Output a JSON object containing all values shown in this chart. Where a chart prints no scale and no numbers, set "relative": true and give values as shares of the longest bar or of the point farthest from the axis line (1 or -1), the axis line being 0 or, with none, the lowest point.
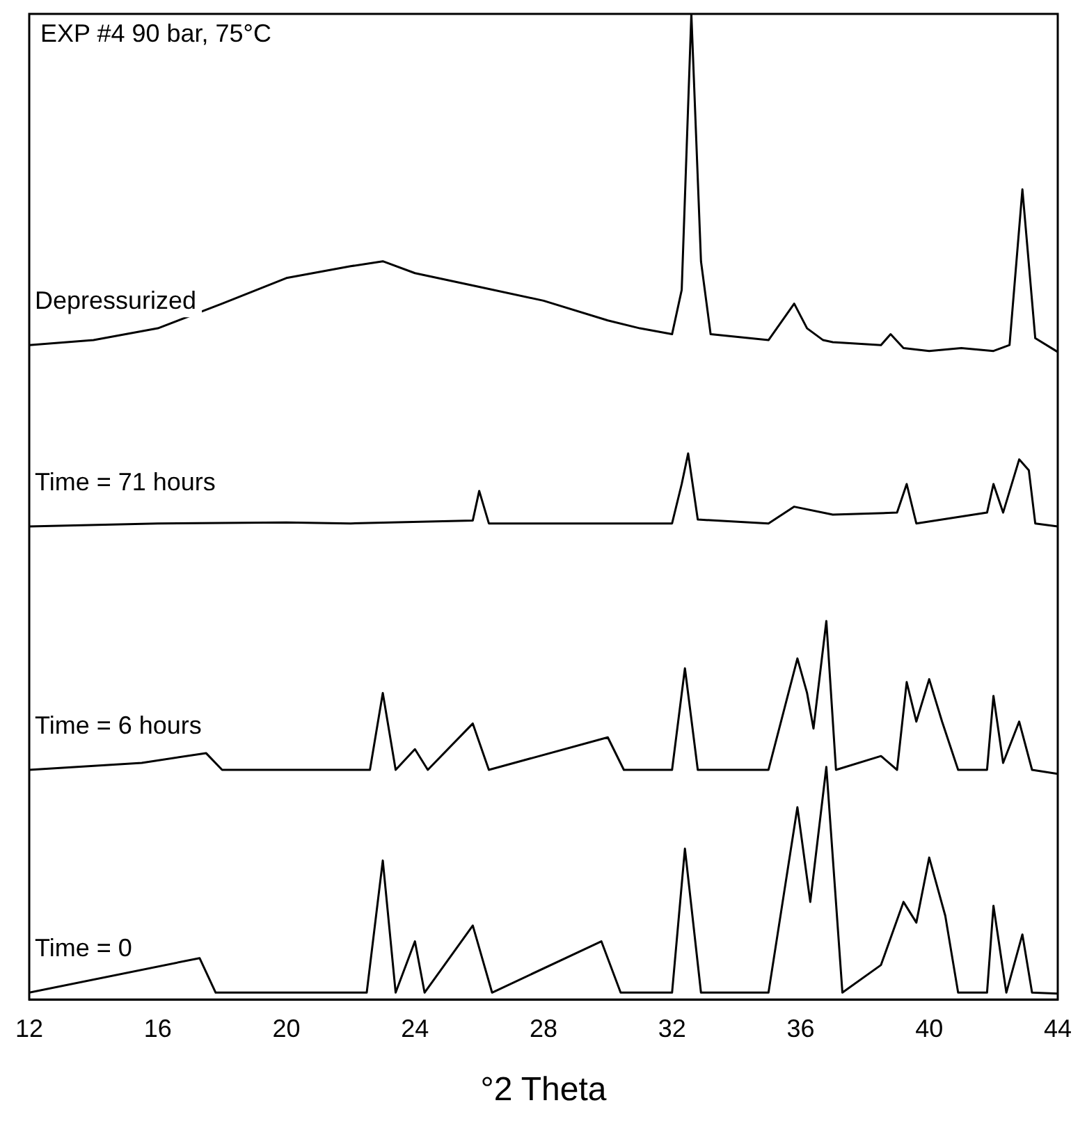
{
  "chart_data": {
    "type": "line",
    "title": "EXP #4 90 bar, 75°C",
    "xlabel": "°2 Theta",
    "relative": true,
    "xlim": [
      12,
      44
    ],
    "xticks": [
      12,
      16,
      20,
      24,
      28,
      32,
      36,
      40,
      44
    ],
    "grid": false,
    "legend": false,
    "marker": "none",
    "line_style": "solid",
    "tick_labels": "x",
    "series": [
      {
        "name": "Depressurized",
        "color": "#000000",
        "x": [
          12,
          14,
          16,
          18,
          20,
          22,
          23,
          24,
          26,
          28,
          30,
          31,
          32,
          32.3,
          32.6,
          32.9,
          33.2,
          35,
          35.8,
          36.2,
          36.7,
          37,
          38.5,
          38.8,
          39.2,
          40,
          41,
          42,
          42.5,
          42.9,
          43.3,
          44
        ],
        "values": [
          0.664,
          0.669,
          0.681,
          0.706,
          0.732,
          0.744,
          0.749,
          0.737,
          0.723,
          0.709,
          0.689,
          0.681,
          0.675,
          0.72,
          1.0,
          0.749,
          0.675,
          0.669,
          0.706,
          0.681,
          0.669,
          0.667,
          0.664,
          0.675,
          0.661,
          0.658,
          0.661,
          0.658,
          0.664,
          0.822,
          0.671,
          0.657
        ]
      },
      {
        "name": "Time = 71 hours",
        "color": "#000000",
        "x": [
          12,
          16,
          20,
          22,
          25.8,
          26,
          26.3,
          30,
          32,
          32.3,
          32.5,
          32.8,
          35,
          35.8,
          37,
          39,
          39.3,
          39.6,
          41.8,
          42,
          42.3,
          42.8,
          43.1,
          43.3,
          44
        ],
        "values": [
          0.48,
          0.483,
          0.484,
          0.483,
          0.486,
          0.516,
          0.483,
          0.483,
          0.483,
          0.523,
          0.554,
          0.487,
          0.483,
          0.5,
          0.492,
          0.494,
          0.523,
          0.483,
          0.494,
          0.523,
          0.494,
          0.548,
          0.537,
          0.483,
          0.48
        ]
      },
      {
        "name": "Time = 6 hours",
        "color": "#000000",
        "x": [
          12,
          15.5,
          17.5,
          18,
          22.6,
          23,
          23.4,
          24,
          24.4,
          25.8,
          26.3,
          30,
          30.5,
          32,
          32.4,
          32.8,
          35,
          35.9,
          36.2,
          36.4,
          36.8,
          37.1,
          38.5,
          39,
          39.3,
          39.6,
          40,
          40.4,
          40.9,
          41.8,
          42,
          42.3,
          42.8,
          43.2,
          44
        ],
        "values": [
          0.233,
          0.24,
          0.25,
          0.233,
          0.233,
          0.311,
          0.233,
          0.254,
          0.233,
          0.28,
          0.233,
          0.266,
          0.233,
          0.233,
          0.336,
          0.233,
          0.233,
          0.346,
          0.311,
          0.275,
          0.384,
          0.233,
          0.247,
          0.233,
          0.322,
          0.282,
          0.325,
          0.282,
          0.233,
          0.233,
          0.308,
          0.24,
          0.282,
          0.233,
          0.229
        ]
      },
      {
        "name": "Time = 0",
        "color": "#000000",
        "x": [
          12,
          17.3,
          17.8,
          22.5,
          23,
          23.4,
          24,
          24.3,
          25.8,
          26.4,
          29.8,
          30.4,
          32,
          32.4,
          32.9,
          35,
          35.9,
          36.3,
          36.8,
          37.3,
          38.5,
          39.2,
          39.6,
          40,
          40.5,
          40.9,
          41.8,
          42,
          42.4,
          42.9,
          43.2,
          44
        ],
        "values": [
          0.007,
          0.042,
          0.007,
          0.007,
          0.141,
          0.007,
          0.059,
          0.007,
          0.075,
          0.007,
          0.059,
          0.007,
          0.007,
          0.153,
          0.007,
          0.007,
          0.195,
          0.099,
          0.236,
          0.007,
          0.035,
          0.099,
          0.078,
          0.144,
          0.085,
          0.007,
          0.007,
          0.095,
          0.007,
          0.066,
          0.007,
          0.006
        ]
      }
    ]
  }
}
